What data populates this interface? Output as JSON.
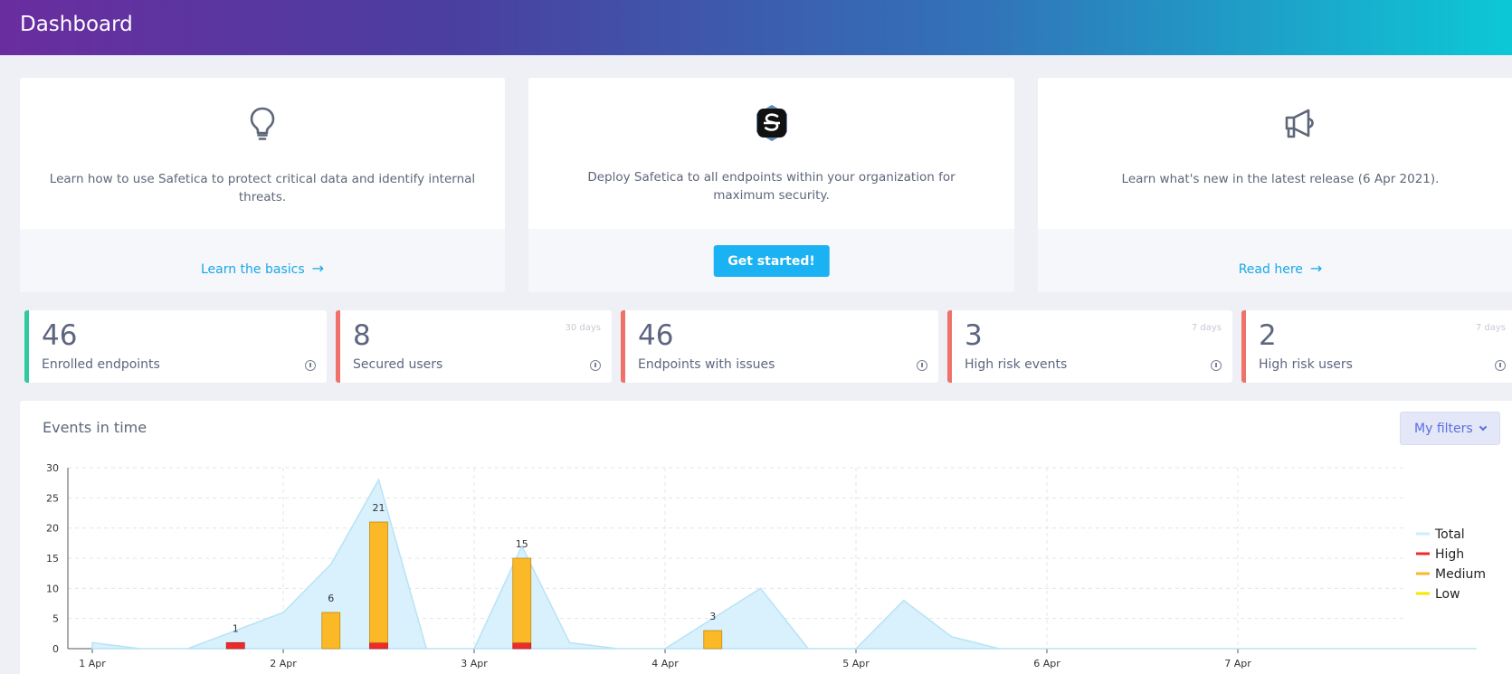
{
  "header": {
    "title": "Dashboard"
  },
  "cards": [
    {
      "icon": "lightbulb-icon",
      "text": "Learn how to use Safetica to protect critical data and identify internal threats.",
      "link": "Learn the basics"
    },
    {
      "icon": "safetica-logo",
      "text": "Deploy Safetica to all endpoints within your organization for maximum security.",
      "button": "Get started!"
    },
    {
      "icon": "megaphone-icon",
      "text": "Learn what's new in the latest release (6 Apr 2021).",
      "link": "Read here"
    }
  ],
  "stats": [
    {
      "value": "46",
      "label": "Enrolled endpoints",
      "period": ""
    },
    {
      "value": "8",
      "label": "Secured users",
      "period": "30 days"
    },
    {
      "value": "46",
      "label": "Endpoints with issues",
      "period": ""
    },
    {
      "value": "3",
      "label": "High risk events",
      "period": "7 days"
    },
    {
      "value": "2",
      "label": "High risk users",
      "period": "7 days"
    }
  ],
  "events_panel": {
    "title": "Events in time",
    "filters_label": "My filters"
  },
  "colors": {
    "total": "#cdeefb",
    "high": "#ee2b2b",
    "medium": "#fbb827",
    "low": "#f7e600",
    "accent": "#1ab2f2"
  },
  "chart_data": {
    "type": "bar",
    "ylim": [
      0,
      30
    ],
    "yticks": [
      0,
      5,
      10,
      15,
      20,
      25,
      30
    ],
    "xlim": [
      0,
      7.5
    ],
    "xticks": [
      "1 Apr",
      "2 Apr",
      "3 Apr",
      "4 Apr",
      "5 Apr",
      "6 Apr",
      "7 Apr"
    ],
    "total": {
      "x": [
        0,
        0.25,
        0.5,
        0.75,
        1,
        1.25,
        1.5,
        1.75,
        2,
        2.25,
        2.5,
        2.75,
        3,
        3.25,
        3.5,
        3.75,
        4,
        4.25,
        4.5,
        4.75,
        5,
        5.25,
        5.5,
        5.75,
        6,
        6.25,
        6.5,
        6.75,
        7,
        7.25
      ],
      "y": [
        1,
        0,
        0,
        3,
        6,
        14,
        28,
        0,
        0,
        17,
        1,
        0,
        0,
        5,
        10,
        0,
        0,
        8,
        2,
        0,
        0,
        0,
        0,
        0,
        0,
        0,
        0,
        0,
        0,
        0
      ]
    },
    "bars": [
      {
        "x": 0.75,
        "high": 1,
        "medium": 0,
        "low": 0,
        "label": "1"
      },
      {
        "x": 1.25,
        "high": 0,
        "medium": 6,
        "low": 0,
        "label": "6"
      },
      {
        "x": 1.5,
        "high": 1,
        "medium": 20,
        "low": 0,
        "label": "21"
      },
      {
        "x": 2.25,
        "high": 1,
        "medium": 14,
        "low": 0,
        "label": "15"
      },
      {
        "x": 3.25,
        "high": 0,
        "medium": 3,
        "low": 0,
        "label": "3"
      }
    ],
    "legend": [
      "Total",
      "High",
      "Medium",
      "Low"
    ],
    "legend_position": "right"
  }
}
